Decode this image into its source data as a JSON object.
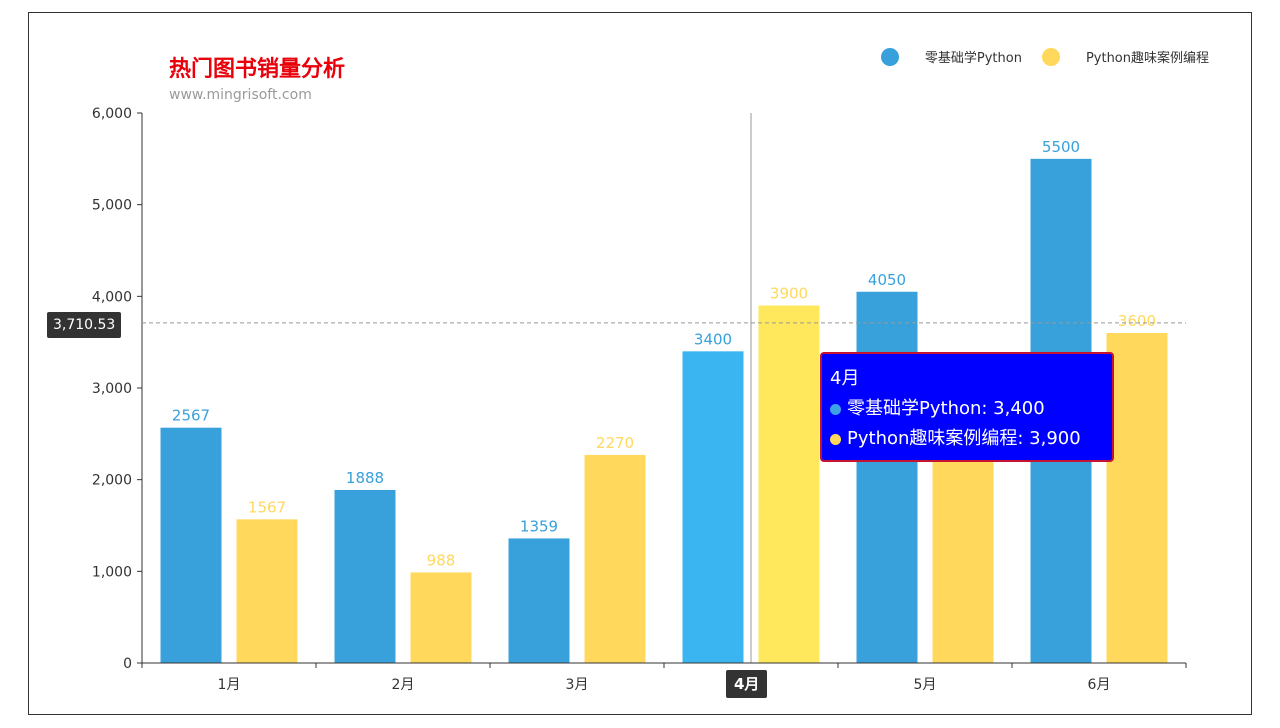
{
  "chart_data": {
    "type": "bar",
    "title": "热门图书销量分析",
    "subtitle": "www.mingrisoft.com",
    "categories": [
      "1月",
      "2月",
      "3月",
      "4月",
      "5月",
      "6月"
    ],
    "series": [
      {
        "name": "零基础学Python",
        "values": [
          2567,
          1888,
          1359,
          3400,
          4050,
          5500
        ],
        "color": "#38a1db",
        "highlight_color": "#3bb4f2"
      },
      {
        "name": "Python趣味案例编程",
        "values": [
          1567,
          988,
          2270,
          3900,
          2300,
          3600
        ],
        "color": "#ffd85c",
        "highlight_color": "#ffe85c"
      }
    ],
    "ylim": [
      0,
      6000
    ],
    "yticks": [
      0,
      1000,
      2000,
      3000,
      4000,
      5000,
      6000
    ],
    "ytick_labels": [
      "0",
      "1,000",
      "2,000",
      "3,000",
      "4,000",
      "5,000",
      "6,000"
    ],
    "grid": false,
    "legend_position": "top-right",
    "axis_pointer": {
      "category": "4月",
      "y_value": 3710.53,
      "y_label": "3,710.53"
    },
    "tooltip": {
      "title": "4月",
      "rows": [
        {
          "label": "零基础学Python: 3,400",
          "color": "#3ea0e6"
        },
        {
          "label": "Python趣味案例编程: 3,900",
          "color": "#ffd85c"
        }
      ]
    }
  }
}
